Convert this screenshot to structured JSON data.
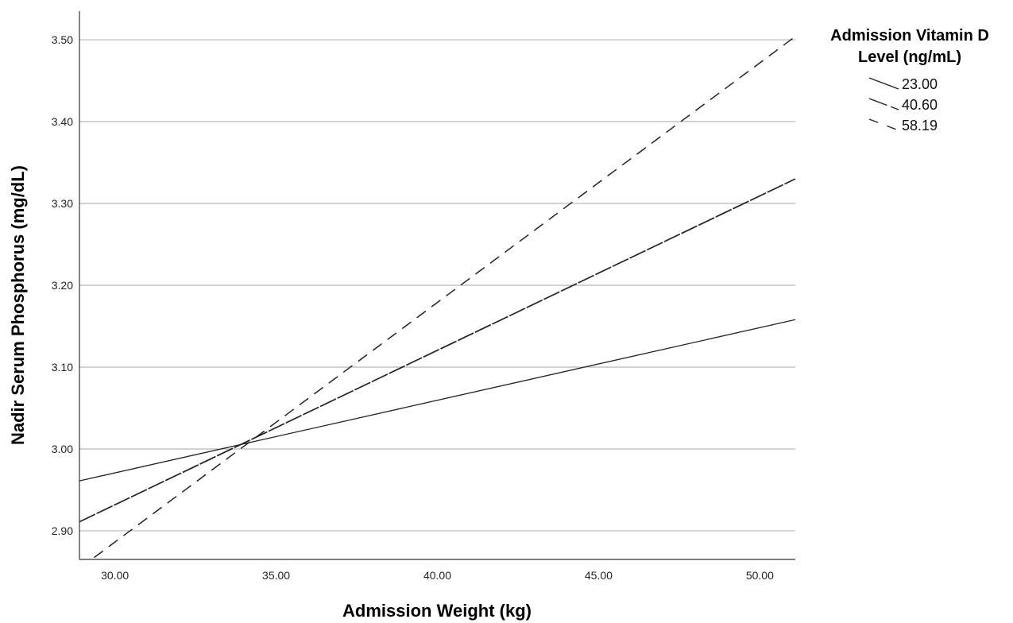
{
  "chart_data": {
    "type": "line",
    "xlabel": "Admission Weight (kg)",
    "ylabel": "Nadir Serum Phosphorus (mg/dL)",
    "xlim": [
      28.9,
      51.1
    ],
    "ylim": [
      2.865,
      3.535
    ],
    "x_ticks": [
      "30.00",
      "35.00",
      "40.00",
      "45.00",
      "50.00"
    ],
    "y_ticks": [
      "2.90",
      "3.00",
      "3.10",
      "3.20",
      "3.30",
      "3.40",
      "3.50"
    ],
    "grid": "horizontal",
    "legend": {
      "title_lines": [
        "Admission Vitamin D",
        "Level (ng/mL)"
      ],
      "placement": "top-right, outside plot"
    },
    "series": [
      {
        "name": "23.00",
        "dash": "solid",
        "points": [
          [
            28.9,
            2.961
          ],
          [
            51.1,
            3.158
          ]
        ]
      },
      {
        "name": "40.60",
        "dash": "long-short",
        "points": [
          [
            28.9,
            2.911
          ],
          [
            51.1,
            3.33
          ]
        ]
      },
      {
        "name": "58.19",
        "dash": "dashed",
        "points": [
          [
            28.9,
            2.854
          ],
          [
            51.1,
            3.504
          ]
        ]
      }
    ]
  }
}
